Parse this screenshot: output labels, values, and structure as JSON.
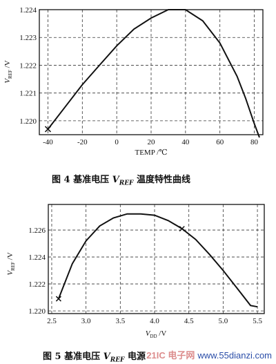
{
  "chart_data": [
    {
      "type": "line",
      "xlabel": "TEMP /℃",
      "ylabel": "V_REF /V",
      "ylabel_main": "V",
      "ylabel_sub": "REF",
      "ylabel_unit": " /V",
      "xlim": [
        -45,
        85
      ],
      "ylim": [
        1.2195,
        1.224
      ],
      "xticks": [
        "-40",
        "-20",
        "0",
        "20",
        "40",
        "60",
        "80"
      ],
      "xtick_values": [
        -40,
        -20,
        0,
        20,
        40,
        60,
        80
      ],
      "yticks": [
        "1.220",
        "1.221",
        "1.222",
        "1.223",
        "1.224"
      ],
      "ytick_values": [
        1.22,
        1.221,
        1.222,
        1.223,
        1.224
      ],
      "grid": true,
      "series": [
        {
          "x": [
            -40,
            -30,
            -20,
            -10,
            0,
            10,
            20,
            30,
            35,
            40,
            50,
            60,
            70,
            75,
            80,
            83
          ],
          "y": [
            1.2197,
            1.2205,
            1.2213,
            1.222,
            1.2227,
            1.2233,
            1.2237,
            1.224,
            1.224,
            1.224,
            1.2236,
            1.2228,
            1.2216,
            1.2208,
            1.2199,
            1.2194
          ],
          "markers": [
            {
              "x": -40,
              "y": 1.2197
            }
          ]
        }
      ]
    },
    {
      "type": "line",
      "xlabel_main": "V",
      "xlabel_sub": "DD",
      "xlabel_unit": " /V",
      "ylabel_main": "V",
      "ylabel_sub": "REF",
      "ylabel_unit": " /V",
      "xlim": [
        2.45,
        5.6
      ],
      "ylim": [
        1.2198,
        1.2279
      ],
      "xticks": [
        "2.5",
        "3.0",
        "3.5",
        "4.0",
        "4.5",
        "5.0",
        "5.5"
      ],
      "xtick_values": [
        2.5,
        3.0,
        3.5,
        4.0,
        4.5,
        5.0,
        5.5
      ],
      "yticks": [
        "1.220",
        "1.222",
        "1.224",
        "1.226"
      ],
      "ytick_values": [
        1.22,
        1.222,
        1.224,
        1.226
      ],
      "grid": true,
      "series": [
        {
          "x": [
            2.6,
            2.8,
            3.0,
            3.2,
            3.4,
            3.6,
            3.8,
            4.0,
            4.2,
            4.4,
            4.6,
            4.8,
            5.0,
            5.2,
            5.4,
            5.5
          ],
          "y": [
            1.2209,
            1.2235,
            1.2252,
            1.2263,
            1.2269,
            1.2272,
            1.2272,
            1.2271,
            1.2267,
            1.2261,
            1.2253,
            1.2242,
            1.223,
            1.2217,
            1.2204,
            1.2203
          ],
          "markers": [
            {
              "x": 2.6,
              "y": 1.2209
            },
            {
              "x": 4.4,
              "y": 1.2261
            }
          ]
        }
      ]
    }
  ],
  "captions": {
    "fig4_prefix": "图 4   基准电压 ",
    "fig4_v": "V",
    "fig4_sub": "REF",
    "fig4_suffix": " 温度特性曲线",
    "fig5_prefix": "图 5   基准电压 ",
    "fig5_v": "V",
    "fig5_sub": "REF",
    "fig5_suffix": " 电源"
  },
  "watermark": {
    "brand": "21IC 电子网",
    "url": "www.55dianzi.com"
  }
}
